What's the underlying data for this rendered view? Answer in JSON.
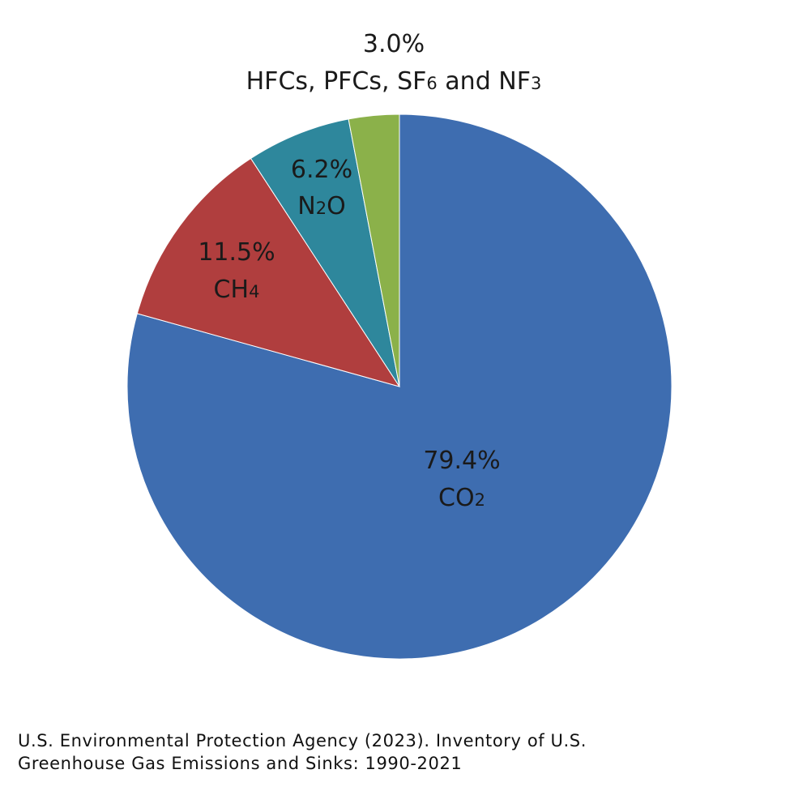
{
  "chart_data": {
    "type": "pie",
    "start_angle_deg": 0,
    "direction": "clockwise",
    "slices": [
      {
        "pct_label": "79.4%",
        "value": 79.4,
        "name_parts": [
          {
            "t": "CO"
          },
          {
            "t": "2",
            "sub": true
          }
        ],
        "color": "#3E6DB0"
      },
      {
        "pct_label": "11.5%",
        "value": 11.5,
        "name_parts": [
          {
            "t": "CH"
          },
          {
            "t": "4",
            "sub": true
          }
        ],
        "color": "#B03E3E"
      },
      {
        "pct_label": "6.2%",
        "value": 6.2,
        "name_parts": [
          {
            "t": "N"
          },
          {
            "t": "2",
            "sub": true
          },
          {
            "t": "O"
          }
        ],
        "color": "#2E879C"
      },
      {
        "pct_label": "3.0%",
        "value": 3.0,
        "name_parts": [
          {
            "t": "HFCs, PFCs, SF"
          },
          {
            "t": "6",
            "sub": true
          },
          {
            "t": " and NF"
          },
          {
            "t": "3",
            "sub": true
          }
        ],
        "color": "#8BB14A"
      }
    ]
  },
  "source": {
    "line1": "U.S. Environmental Protection Agency (2023). Inventory of U.S.",
    "line2": "Greenhouse Gas Emissions and Sinks: 1990-2021"
  }
}
